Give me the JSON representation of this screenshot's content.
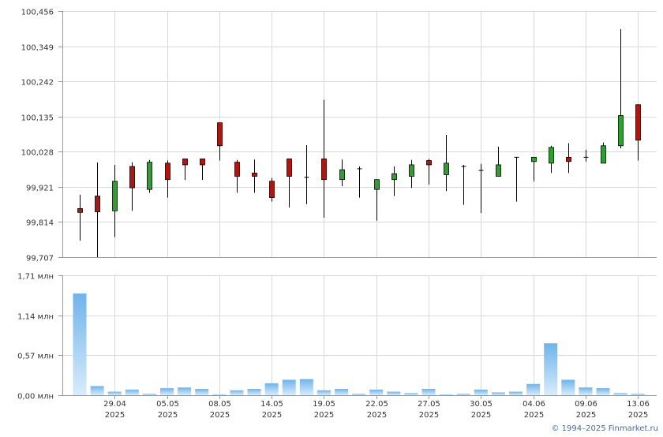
{
  "chart_data": [
    {
      "type": "candlestick",
      "title": "",
      "ylim": [
        99.707,
        100.456
      ],
      "yticks": [
        "100,456",
        "100,349",
        "100,242",
        "100,135",
        "100,028",
        "99,921",
        "99,814",
        "99,707"
      ],
      "ytick_values": [
        100.456,
        100.349,
        100.242,
        100.135,
        100.028,
        99.921,
        99.814,
        99.707
      ],
      "grid": true,
      "colors": {
        "up": "#2aa32a",
        "down": "#b3140d",
        "wick": "#000000"
      },
      "candles": [
        {
          "o": 99.855,
          "h": 99.897,
          "l": 99.757,
          "c": 99.843
        },
        {
          "o": 99.893,
          "h": 99.995,
          "l": 99.707,
          "c": 99.845
        },
        {
          "o": 99.848,
          "h": 99.988,
          "l": 99.768,
          "c": 99.938
        },
        {
          "o": 99.983,
          "h": 99.996,
          "l": 99.848,
          "c": 99.918
        },
        {
          "o": 99.913,
          "h": 100.003,
          "l": 99.903,
          "c": 99.996
        },
        {
          "o": 99.993,
          "h": 100.001,
          "l": 99.888,
          "c": 99.943
        },
        {
          "o": 100.006,
          "h": 100.007,
          "l": 99.942,
          "c": 99.988
        },
        {
          "o": 100.006,
          "h": 100.007,
          "l": 99.942,
          "c": 99.988
        },
        {
          "o": 100.116,
          "h": 100.116,
          "l": 100.001,
          "c": 100.046
        },
        {
          "o": 99.996,
          "h": 100.003,
          "l": 99.903,
          "c": 99.953
        },
        {
          "o": 99.963,
          "h": 100.004,
          "l": 99.903,
          "c": 99.953
        },
        {
          "o": 99.938,
          "h": 99.948,
          "l": 99.876,
          "c": 99.888
        },
        {
          "o": 100.006,
          "h": 100.006,
          "l": 99.858,
          "c": 99.953
        },
        {
          "o": 99.951,
          "h": 100.048,
          "l": 99.868,
          "c": 99.95
        },
        {
          "o": 100.006,
          "h": 100.186,
          "l": 99.827,
          "c": 99.943
        },
        {
          "o": 99.943,
          "h": 100.004,
          "l": 99.923,
          "c": 99.973
        },
        {
          "o": 99.978,
          "h": 99.983,
          "l": 99.888,
          "c": 99.976
        },
        {
          "o": 99.913,
          "h": 99.941,
          "l": 99.818,
          "c": 99.943
        },
        {
          "o": 99.943,
          "h": 99.983,
          "l": 99.893,
          "c": 99.961
        },
        {
          "o": 99.953,
          "h": 100.003,
          "l": 99.918,
          "c": 99.988
        },
        {
          "o": 100.001,
          "h": 100.006,
          "l": 99.928,
          "c": 99.988
        },
        {
          "o": 99.958,
          "h": 100.079,
          "l": 99.908,
          "c": 99.993
        },
        {
          "o": 99.983,
          "h": 99.988,
          "l": 99.866,
          "c": 99.983
        },
        {
          "o": 99.971,
          "h": 99.991,
          "l": 99.841,
          "c": 99.971
        },
        {
          "o": 99.953,
          "h": 100.043,
          "l": 99.953,
          "c": 99.988
        },
        {
          "o": 100.011,
          "h": 100.011,
          "l": 99.876,
          "c": 100.011
        },
        {
          "o": 99.998,
          "h": 100.011,
          "l": 99.938,
          "c": 100.011
        },
        {
          "o": 99.993,
          "h": 100.046,
          "l": 99.963,
          "c": 100.041
        },
        {
          "o": 100.011,
          "h": 100.054,
          "l": 99.963,
          "c": 99.998
        },
        {
          "o": 100.011,
          "h": 100.034,
          "l": 99.998,
          "c": 100.011
        },
        {
          "o": 99.993,
          "h": 100.056,
          "l": 99.993,
          "c": 100.046
        },
        {
          "o": 100.046,
          "h": 100.401,
          "l": 100.038,
          "c": 100.138
        },
        {
          "o": 100.171,
          "h": 100.171,
          "l": 100.001,
          "c": 100.063
        }
      ]
    },
    {
      "type": "bar",
      "title": "",
      "ylim": [
        0,
        1.71
      ],
      "yticks": [
        "1,71 млн",
        "1,14 млн",
        "0,57 млн",
        "0,00 млн"
      ],
      "ytick_values": [
        1.71,
        1.14,
        0.57,
        0.0
      ],
      "unit": "млн",
      "grid": true,
      "colors": {
        "bar_top": "#6eb4ec",
        "bar_bottom": "#d8ecfb"
      },
      "values": [
        1.45,
        0.13,
        0.05,
        0.08,
        0.02,
        0.1,
        0.11,
        0.09,
        0.01,
        0.07,
        0.09,
        0.17,
        0.22,
        0.23,
        0.07,
        0.09,
        0.02,
        0.08,
        0.05,
        0.03,
        0.09,
        0.01,
        0.02,
        0.08,
        0.04,
        0.05,
        0.16,
        0.74,
        0.22,
        0.11,
        0.1,
        0.03,
        0.02
      ]
    }
  ],
  "x_axis": {
    "labels": [
      {
        "index": 2,
        "day": "29.04",
        "year": "2025"
      },
      {
        "index": 5,
        "day": "05.05",
        "year": "2025"
      },
      {
        "index": 8,
        "day": "08.05",
        "year": "2025"
      },
      {
        "index": 11,
        "day": "14.05",
        "year": "2025"
      },
      {
        "index": 14,
        "day": "19.05",
        "year": "2025"
      },
      {
        "index": 17,
        "day": "22.05",
        "year": "2025"
      },
      {
        "index": 20,
        "day": "27.05",
        "year": "2025"
      },
      {
        "index": 23,
        "day": "30.05",
        "year": "2025"
      },
      {
        "index": 26,
        "day": "04.06",
        "year": "2025"
      },
      {
        "index": 29,
        "day": "09.06",
        "year": "2025"
      },
      {
        "index": 32,
        "day": "13.06",
        "year": "2025"
      }
    ]
  },
  "credit": "© 1994–2025 Finmarket.ru"
}
